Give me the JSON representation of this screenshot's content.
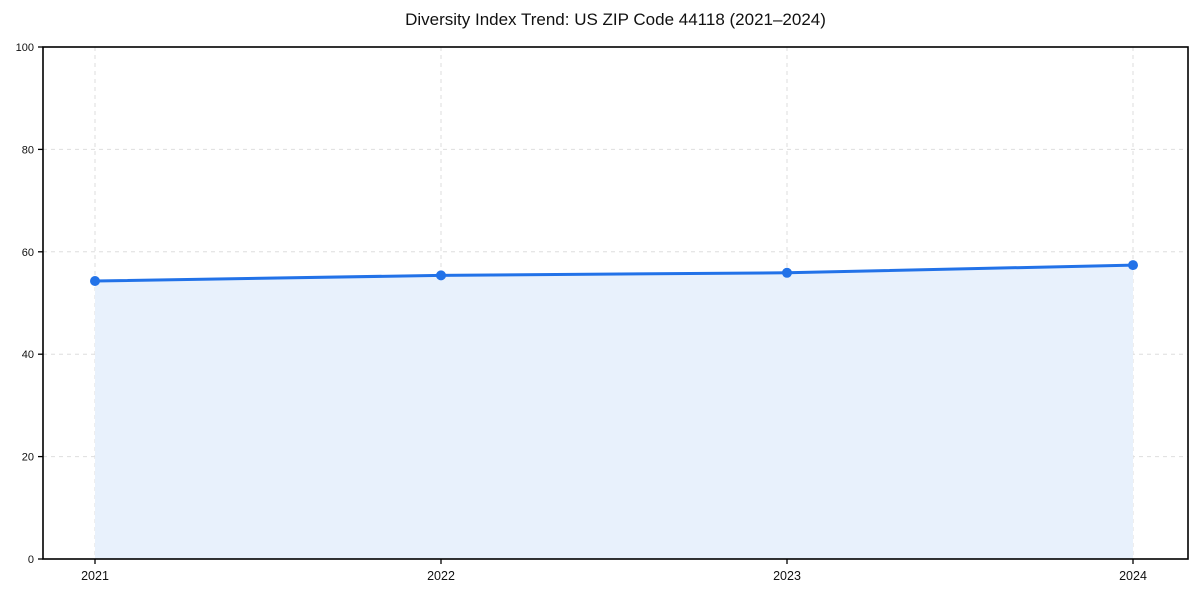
{
  "chart_data": {
    "type": "line",
    "title": "Diversity Index Trend: US ZIP Code 44118 (2021–2024)",
    "categories": [
      "2021",
      "2022",
      "2023",
      "2024"
    ],
    "series": [
      {
        "name": "Diversity Index",
        "values": [
          54.3,
          55.4,
          55.9,
          57.4
        ]
      }
    ],
    "xlabel": "",
    "ylabel": "",
    "ylim": [
      0,
      100
    ],
    "yticks": [
      0,
      20,
      40,
      60,
      80,
      100
    ],
    "grid": "dashed, both axes",
    "legend": "none",
    "marker": "circle",
    "area_fill": true,
    "colors": {
      "line": "#2272e8",
      "marker": "#2272e8",
      "area": "#e8f1fc",
      "grid": "#dedede",
      "spine": "#000000",
      "tick_text": "#111111",
      "title_text": "#111111",
      "background": "#ffffff"
    }
  }
}
